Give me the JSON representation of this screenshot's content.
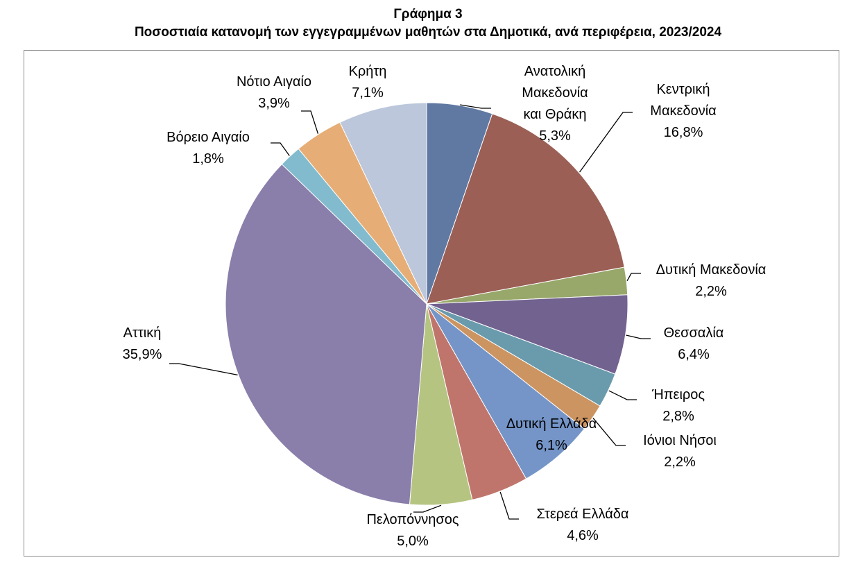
{
  "title": "Γράφημα 3",
  "subtitle": "Ποσοστιαία κατανομή των εγγεγραμμένων μαθητών στα Δημοτικά, ανά περιφέρεια, 2023/2024",
  "chart_data": {
    "type": "pie",
    "title": "Γράφημα 3",
    "subtitle": "Ποσοστιαία κατανομή των εγγεγραμμένων μαθητών στα Δημοτικά, ανά περιφέρεια, 2023/2024",
    "start_angle_deg": 0,
    "direction": "clockwise",
    "slices": [
      {
        "label": "Ανατολική Μακεδονία και Θράκη",
        "value": 5.3,
        "value_label": "5,3%",
        "color": "#6079A3"
      },
      {
        "label": "Κεντρική Μακεδονία",
        "value": 16.8,
        "value_label": "16,8%",
        "color": "#9B5F55"
      },
      {
        "label": "Δυτική Μακεδονία",
        "value": 2.2,
        "value_label": "2,2%",
        "color": "#98A86A"
      },
      {
        "label": "Θεσσαλία",
        "value": 6.4,
        "value_label": "6,4%",
        "color": "#726290"
      },
      {
        "label": "Ήπειρος",
        "value": 2.8,
        "value_label": "2,8%",
        "color": "#6A9BAD"
      },
      {
        "label": "Ιόνιοι Νήσοι",
        "value": 2.2,
        "value_label": "2,2%",
        "color": "#CC9461"
      },
      {
        "label": "Δυτική Ελλάδα",
        "value": 6.1,
        "value_label": "6,1%",
        "color": "#7595C8"
      },
      {
        "label": "Στερεά Ελλάδα",
        "value": 4.6,
        "value_label": "4,6%",
        "color": "#C0756C"
      },
      {
        "label": "Πελοπόννησος",
        "value": 5.0,
        "value_label": "5,0%",
        "color": "#B6C482"
      },
      {
        "label": "Αττική",
        "value": 35.9,
        "value_label": "35,9%",
        "color": "#8A7EAA"
      },
      {
        "label": "Βόρειο Αιγαίο",
        "value": 1.8,
        "value_label": "1,8%",
        "color": "#82BBCE"
      },
      {
        "label": "Νότιο Αιγαίο",
        "value": 3.9,
        "value_label": "3,9%",
        "color": "#E6AE76"
      },
      {
        "label": "Κρήτη",
        "value": 7.1,
        "value_label": "7,1%",
        "color": "#BCC7DB"
      }
    ]
  },
  "labels": [
    {
      "lines": [
        "Ανατολική",
        "Μακεδονία",
        "και Θράκη",
        "5,3%"
      ]
    },
    {
      "lines": [
        "Κεντρική",
        "Μακεδονία",
        "16,8%"
      ]
    },
    {
      "lines": [
        "Δυτική Μακεδονία",
        "2,2%"
      ]
    },
    {
      "lines": [
        "Θεσσαλία",
        "6,4%"
      ]
    },
    {
      "lines": [
        "Ήπειρος",
        "2,8%"
      ]
    },
    {
      "lines": [
        "Ιόνιοι Νήσοι",
        "2,2%"
      ]
    },
    {
      "lines": [
        "Δυτική Ελλάδα",
        "6,1%"
      ]
    },
    {
      "lines": [
        "Στερεά Ελλάδα",
        "4,6%"
      ]
    },
    {
      "lines": [
        "Πελοπόννησος",
        "5,0%"
      ]
    },
    {
      "lines": [
        "Αττική",
        "35,9%"
      ]
    },
    {
      "lines": [
        "Βόρειο Αιγαίο",
        "1,8%"
      ]
    },
    {
      "lines": [
        "Νότιο Αιγαίο",
        "3,9%"
      ]
    },
    {
      "lines": [
        "Κρήτη",
        "7,1%"
      ]
    }
  ]
}
